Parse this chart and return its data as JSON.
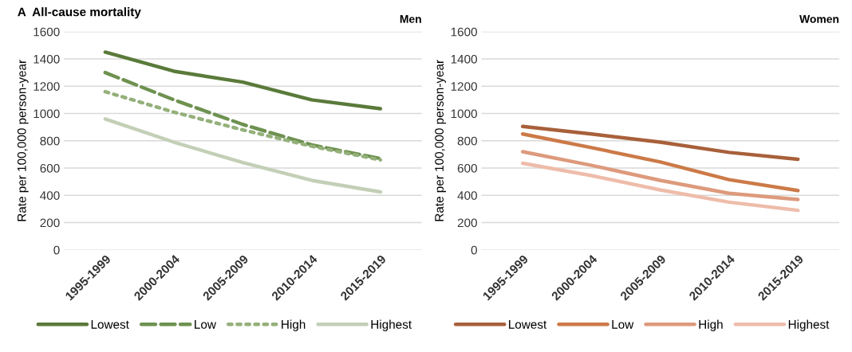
{
  "chart_data": [
    {
      "type": "line",
      "title": "A  All-cause mortality",
      "subtitle": "Men",
      "ylabel": "Rate per 100,000 person-year",
      "categories": [
        "1995-1999",
        "2000-2004",
        "2005-2009",
        "2010-2014",
        "2015-2019"
      ],
      "ylim": [
        0,
        1600
      ],
      "yticks": [
        0,
        200,
        400,
        600,
        800,
        1000,
        1200,
        1400,
        1600
      ],
      "grid": "y",
      "legend": "bottom",
      "series": [
        {
          "name": "Lowest",
          "color": "#5a7a3a",
          "line_style": "solid",
          "values": [
            1450,
            1310,
            1230,
            1100,
            1035
          ]
        },
        {
          "name": "Low",
          "color": "#6e9150",
          "line_style": "dashed",
          "values": [
            1300,
            1100,
            920,
            770,
            670
          ]
        },
        {
          "name": "High",
          "color": "#94b07a",
          "line_style": "dotted",
          "values": [
            1160,
            1010,
            880,
            760,
            660
          ]
        },
        {
          "name": "Highest",
          "color": "#c3cfb6",
          "line_style": "solid",
          "values": [
            960,
            790,
            640,
            510,
            425
          ]
        }
      ]
    },
    {
      "type": "line",
      "subtitle": "Women",
      "ylabel": "Rate per 100,000 person-year",
      "categories": [
        "1995-1999",
        "2000-2004",
        "2005-2009",
        "2010-2014",
        "2015-2019"
      ],
      "ylim": [
        0,
        1600
      ],
      "yticks": [
        0,
        200,
        400,
        600,
        800,
        1000,
        1200,
        1400,
        1600
      ],
      "grid": "y",
      "legend": "bottom",
      "series": [
        {
          "name": "Lowest",
          "color": "#a8603a",
          "line_style": "solid",
          "values": [
            905,
            850,
            790,
            715,
            665
          ]
        },
        {
          "name": "Low",
          "color": "#cc7a48",
          "line_style": "solid",
          "values": [
            850,
            750,
            645,
            515,
            435
          ]
        },
        {
          "name": "High",
          "color": "#dd9a7c",
          "line_style": "solid",
          "values": [
            720,
            620,
            510,
            415,
            370
          ]
        },
        {
          "name": "Highest",
          "color": "#eebcaa",
          "line_style": "solid",
          "values": [
            635,
            545,
            440,
            350,
            290
          ]
        }
      ]
    }
  ]
}
